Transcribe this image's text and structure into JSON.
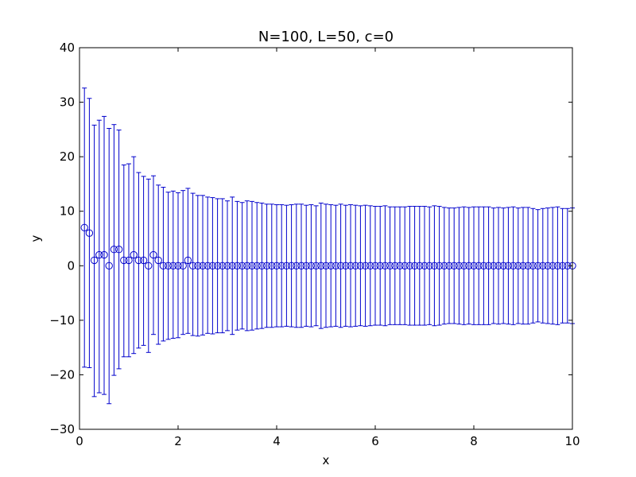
{
  "chart_data": {
    "type": "scatter",
    "title": "N=100, L=50, c=0",
    "xlabel": "x",
    "ylabel": "y",
    "xlim": [
      0,
      10
    ],
    "ylim": [
      -30,
      40
    ],
    "xticks": [
      0,
      2,
      4,
      6,
      8,
      10
    ],
    "xtick_labels": [
      "0",
      "2",
      "4",
      "6",
      "8",
      "10"
    ],
    "yticks": [
      -30,
      -20,
      -10,
      0,
      10,
      20,
      30,
      40
    ],
    "ytick_labels": [
      "−30",
      "−20",
      "−10",
      "0",
      "10",
      "20",
      "30",
      "40"
    ],
    "grid": false,
    "legend": "none",
    "colors": {
      "series": "#0000cc"
    },
    "series": [
      {
        "marker": "open-circle",
        "errorbars": true,
        "x": [
          0.1,
          0.2,
          0.3,
          0.4,
          0.5,
          0.6,
          0.7,
          0.8,
          0.9,
          1.0,
          1.1,
          1.2,
          1.3,
          1.4,
          1.5,
          1.6,
          1.7,
          1.8,
          1.9,
          2.0,
          2.1,
          2.2,
          2.3,
          2.4,
          2.5,
          2.6,
          2.7,
          2.8,
          2.9,
          3.0,
          3.1,
          3.2,
          3.3,
          3.4,
          3.5,
          3.6,
          3.7,
          3.8,
          3.9,
          4.0,
          4.1,
          4.2,
          4.3,
          4.4,
          4.5,
          4.6,
          4.7,
          4.8,
          4.9,
          5.0,
          5.1,
          5.2,
          5.3,
          5.4,
          5.5,
          5.6,
          5.7,
          5.8,
          5.9,
          6.0,
          6.1,
          6.2,
          6.3,
          6.4,
          6.5,
          6.6,
          6.7,
          6.8,
          6.9,
          7.0,
          7.1,
          7.2,
          7.3,
          7.4,
          7.5,
          7.6,
          7.7,
          7.8,
          7.9,
          8.0,
          8.1,
          8.2,
          8.3,
          8.4,
          8.5,
          8.6,
          8.7,
          8.8,
          8.9,
          9.0,
          9.1,
          9.2,
          9.3,
          9.4,
          9.5,
          9.6,
          9.7,
          9.8,
          9.9,
          10.0
        ],
        "y": [
          7,
          6,
          1,
          2,
          2,
          0,
          3,
          3,
          1,
          1,
          2,
          1,
          1,
          0,
          2,
          1,
          0,
          0,
          0,
          0,
          0,
          1,
          0,
          0,
          0,
          0,
          0,
          0,
          0,
          0,
          0,
          0,
          0,
          0,
          0,
          0,
          0,
          0,
          0,
          0,
          0,
          0,
          0,
          0,
          0,
          0,
          0,
          0,
          0,
          0,
          0,
          0,
          0,
          0,
          0,
          0,
          0,
          0,
          0,
          0,
          0,
          0,
          0,
          0,
          0,
          0,
          0,
          0,
          0,
          0,
          0,
          0,
          0,
          0,
          0,
          0,
          0,
          0,
          0,
          0,
          0,
          0,
          0,
          0,
          0,
          0,
          0,
          0,
          0,
          0,
          0,
          0,
          0,
          0,
          0,
          0,
          0,
          0,
          0,
          0
        ],
        "y_upper": [
          32.6,
          30.7,
          25.8,
          26.7,
          27.4,
          25.2,
          25.9,
          24.9,
          18.5,
          18.7,
          20.0,
          17.1,
          16.4,
          15.9,
          16.5,
          14.8,
          14.4,
          13.5,
          13.7,
          13.4,
          13.8,
          14.2,
          13.3,
          12.9,
          12.9,
          12.6,
          12.5,
          12.3,
          12.3,
          11.9,
          12.6,
          11.8,
          11.6,
          11.9,
          11.8,
          11.6,
          11.5,
          11.3,
          11.3,
          11.2,
          11.2,
          11.1,
          11.2,
          11.3,
          11.3,
          11.1,
          11.2,
          11.0,
          11.5,
          11.3,
          11.2,
          11.1,
          11.3,
          11.1,
          11.2,
          11.1,
          11.0,
          11.1,
          11.0,
          10.9,
          10.9,
          11.0,
          10.8,
          10.8,
          10.8,
          10.8,
          10.9,
          10.9,
          10.9,
          10.9,
          10.8,
          11.0,
          10.9,
          10.7,
          10.6,
          10.6,
          10.7,
          10.8,
          10.7,
          10.8,
          10.8,
          10.8,
          10.8,
          10.6,
          10.7,
          10.6,
          10.7,
          10.8,
          10.6,
          10.7,
          10.7,
          10.5,
          10.3,
          10.5,
          10.6,
          10.7,
          10.8,
          10.5,
          10.5,
          10.6
        ],
        "y_lower": [
          -18.6,
          -18.7,
          -24.0,
          -23.3,
          -23.6,
          -25.3,
          -20.1,
          -18.9,
          -16.7,
          -16.7,
          -16.1,
          -15.1,
          -14.6,
          -15.9,
          -12.6,
          -14.4,
          -13.8,
          -13.5,
          -13.3,
          -13.2,
          -12.6,
          -12.4,
          -12.8,
          -12.9,
          -12.7,
          -12.4,
          -12.5,
          -12.3,
          -12.3,
          -11.9,
          -12.6,
          -11.8,
          -11.6,
          -11.9,
          -11.8,
          -11.6,
          -11.5,
          -11.3,
          -11.3,
          -11.2,
          -11.2,
          -11.1,
          -11.2,
          -11.3,
          -11.3,
          -11.1,
          -11.2,
          -11.0,
          -11.5,
          -11.3,
          -11.2,
          -11.1,
          -11.3,
          -11.1,
          -11.2,
          -11.1,
          -11.0,
          -11.1,
          -11.0,
          -10.9,
          -10.9,
          -11.0,
          -10.8,
          -10.8,
          -10.8,
          -10.8,
          -10.9,
          -10.9,
          -10.9,
          -10.9,
          -10.8,
          -11.0,
          -10.9,
          -10.7,
          -10.6,
          -10.6,
          -10.7,
          -10.8,
          -10.7,
          -10.8,
          -10.8,
          -10.8,
          -10.8,
          -10.6,
          -10.7,
          -10.6,
          -10.7,
          -10.8,
          -10.6,
          -10.7,
          -10.7,
          -10.5,
          -10.3,
          -10.5,
          -10.6,
          -10.7,
          -10.8,
          -10.5,
          -10.5,
          -10.6
        ]
      }
    ]
  }
}
